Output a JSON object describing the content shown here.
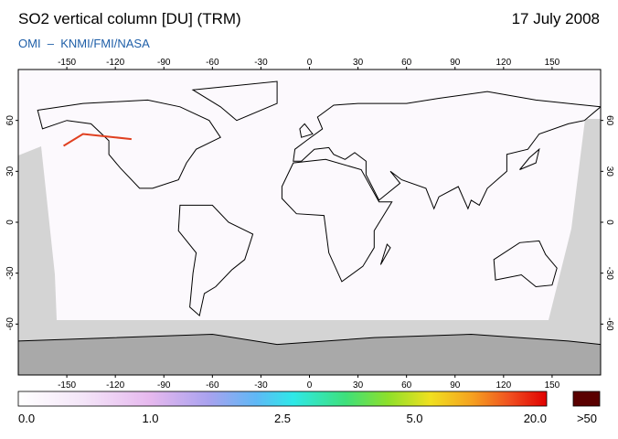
{
  "header": {
    "title": "SO2 vertical column [DU] (TRM)",
    "date": "17 July 2008",
    "credit": "OMI  –  KNMI/FMI/NASA"
  },
  "map": {
    "lon_ticks": [
      -150,
      -120,
      -90,
      -60,
      -30,
      0,
      30,
      60,
      90,
      120,
      150
    ],
    "lat_ticks": [
      60,
      30,
      0,
      -30,
      -60
    ]
  },
  "colorbar": {
    "labels": [
      "0.0",
      "1.0",
      "2.5",
      "5.0",
      "20.0"
    ],
    "overflow_label": ">50"
  }
}
